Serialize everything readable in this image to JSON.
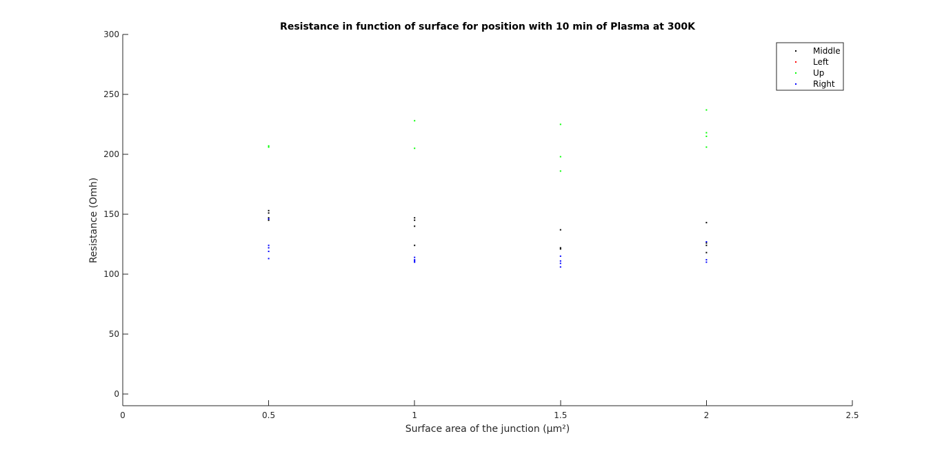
{
  "chart_data": {
    "type": "scatter",
    "title": "Resistance in function of surface for position with 10 min of Plasma at 300K",
    "xlabel": "Surface area of the junction (µm²)",
    "ylabel": "Resistance (Omh)",
    "xlim": [
      0,
      2.5
    ],
    "ylim": [
      0,
      300
    ],
    "xticks": [
      0,
      0.5,
      1,
      1.5,
      2,
      2.5
    ],
    "yticks": [
      0,
      50,
      100,
      150,
      200,
      250,
      300
    ],
    "grid": false,
    "legend_position": "top-right",
    "series": [
      {
        "name": "Middle",
        "color": "#000000",
        "x": [
          0.5,
          0.5,
          0.5,
          0.5,
          1,
          1,
          1,
          1,
          1.5,
          1.5,
          1.5,
          2,
          2,
          2,
          2
        ],
        "y": [
          153,
          151,
          147,
          145,
          147,
          145,
          140,
          124,
          137,
          122,
          121,
          143,
          126,
          124,
          118
        ]
      },
      {
        "name": "Left",
        "color": "#ff0000",
        "x": [],
        "y": []
      },
      {
        "name": "Up",
        "color": "#00ff00",
        "x": [
          0.5,
          0.5,
          1,
          1,
          1.5,
          1.5,
          1.5,
          2,
          2,
          2,
          2
        ],
        "y": [
          207,
          206,
          228,
          205,
          225,
          198,
          186,
          237,
          218,
          215,
          206
        ]
      },
      {
        "name": "Right",
        "color": "#0000ff",
        "x": [
          0.5,
          0.5,
          0.5,
          0.5,
          0.5,
          1,
          1,
          1,
          1,
          1.5,
          1.5,
          1.5,
          1.5,
          2,
          2,
          2
        ],
        "y": [
          146,
          124,
          122,
          119,
          113,
          114,
          112,
          111,
          110,
          115,
          111,
          109,
          106,
          127,
          112,
          110
        ]
      }
    ]
  }
}
